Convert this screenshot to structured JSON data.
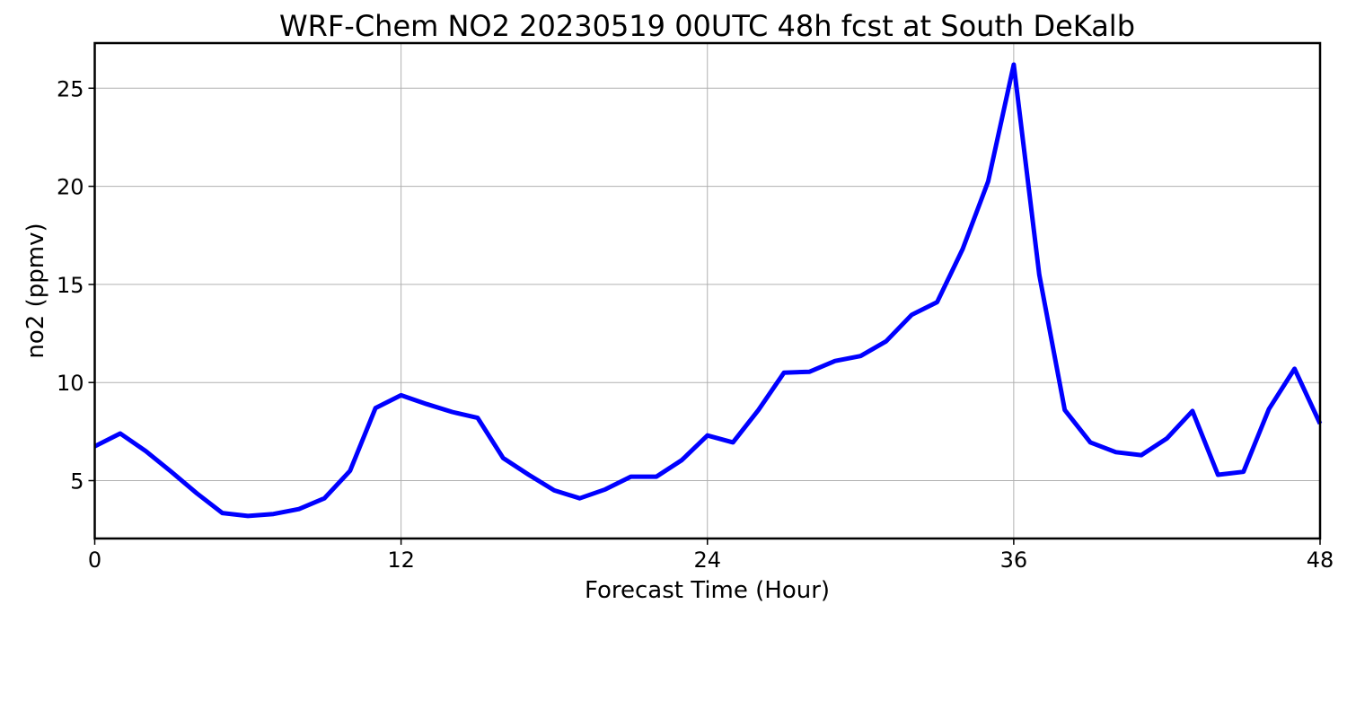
{
  "chart_data": {
    "type": "line",
    "title": "WRF-Chem NO2  20230519 00UTC 48h fcst at South DeKalb",
    "xlabel": "Forecast Time (Hour)",
    "ylabel": "no2  (ppmv)",
    "xlim": [
      0,
      48
    ],
    "ylim": [
      2.05,
      27.3
    ],
    "x_ticks": [
      0,
      12,
      24,
      36,
      48
    ],
    "y_ticks": [
      5,
      10,
      15,
      20,
      25
    ],
    "grid": true,
    "line_color": "#0000ff",
    "series": [
      {
        "x": [
          0,
          1,
          2,
          3,
          4,
          5,
          6,
          7,
          8,
          9,
          10,
          11,
          12,
          13,
          14,
          15,
          16,
          17,
          18,
          19,
          20,
          21,
          22,
          23,
          24,
          25,
          26,
          27,
          28,
          29,
          30,
          31,
          32,
          33,
          34,
          35,
          36,
          37,
          38,
          39,
          40,
          41,
          42,
          43,
          44,
          45,
          46,
          47,
          48
        ],
        "values": [
          6.75,
          7.4,
          6.5,
          5.45,
          4.35,
          3.35,
          3.2,
          3.3,
          3.55,
          4.1,
          5.5,
          8.7,
          9.35,
          8.9,
          8.5,
          8.2,
          6.15,
          5.3,
          4.5,
          4.1,
          4.55,
          5.2,
          5.2,
          6.05,
          7.3,
          6.95,
          8.6,
          10.5,
          10.55,
          11.1,
          11.35,
          12.1,
          13.45,
          14.1,
          16.8,
          20.25,
          26.2,
          15.5,
          8.6,
          6.95,
          6.45,
          6.3,
          7.15,
          8.55,
          5.3,
          5.45,
          8.65,
          10.7,
          7.9
        ]
      }
    ]
  }
}
